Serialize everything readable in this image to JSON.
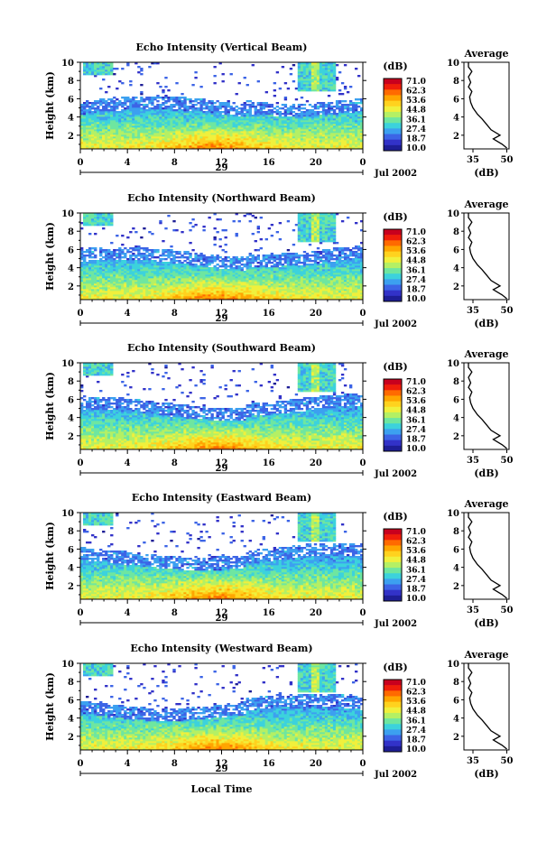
{
  "figure": {
    "xlabel": "Local Time",
    "date_suffix": "Jul 2002",
    "colorbar_unit": "(dB)",
    "colorbar_ticks": [
      "71.0",
      "62.3",
      "53.6",
      "44.8",
      "36.1",
      "27.4",
      "18.7",
      "10.0"
    ],
    "colorbar_colors": [
      "#c8001e",
      "#f01e0a",
      "#ff6a00",
      "#ffa500",
      "#ffd21e",
      "#f0f03c",
      "#b4f064",
      "#6ee6a0",
      "#3cd2dc",
      "#3ca0f0",
      "#3c64e6",
      "#3232c8",
      "#1e1e96"
    ],
    "avg_title": "Average",
    "avg_xlabel": "(dB)"
  },
  "chart_data": [
    {
      "type": "heatmap",
      "title": "Echo Intensity (Vertical Beam)",
      "ylabel": "Height (km)",
      "day_label": "29",
      "x_ticks": [
        "0",
        "4",
        "8",
        "12",
        "16",
        "20",
        "0"
      ],
      "xlim": [
        0,
        24
      ],
      "y_ticks": [
        "2",
        "4",
        "6",
        "8",
        "10"
      ],
      "ylim": [
        0.5,
        10
      ],
      "color_range_db": [
        10.0,
        71.0
      ],
      "average_profile": {
        "x_ticks": [
          "35",
          "50"
        ],
        "xlim": [
          31,
          51
        ],
        "y_ticks": [
          "2",
          "4",
          "6",
          "8",
          "10"
        ],
        "ylim": [
          0.5,
          10
        ],
        "points": [
          [
            50,
            0.6
          ],
          [
            48,
            1.0
          ],
          [
            44,
            1.6
          ],
          [
            47,
            2.0
          ],
          [
            43,
            2.6
          ],
          [
            41,
            3.2
          ],
          [
            39,
            3.8
          ],
          [
            37,
            4.3
          ],
          [
            35,
            5.0
          ],
          [
            34,
            5.6
          ],
          [
            33.5,
            6.2
          ],
          [
            34.5,
            6.8
          ],
          [
            33,
            7.3
          ],
          [
            34,
            7.8
          ],
          [
            33,
            8.4
          ],
          [
            34.5,
            9.0
          ],
          [
            33,
            9.5
          ],
          [
            33,
            10.0
          ]
        ]
      }
    },
    {
      "type": "heatmap",
      "title": "Echo Intensity (Northward Beam)",
      "ylabel": "Height (km)",
      "day_label": "29",
      "x_ticks": [
        "0",
        "4",
        "8",
        "12",
        "16",
        "20",
        "0"
      ],
      "xlim": [
        0,
        24
      ],
      "y_ticks": [
        "2",
        "4",
        "6",
        "8",
        "10"
      ],
      "ylim": [
        0.5,
        10
      ],
      "color_range_db": [
        10.0,
        71.0
      ],
      "average_profile": {
        "x_ticks": [
          "35",
          "50"
        ],
        "xlim": [
          31,
          51
        ],
        "y_ticks": [
          "2",
          "4",
          "6",
          "8",
          "10"
        ],
        "ylim": [
          0.5,
          10
        ],
        "points": [
          [
            50,
            0.6
          ],
          [
            48,
            1.0
          ],
          [
            44,
            1.6
          ],
          [
            47,
            2.0
          ],
          [
            43,
            2.6
          ],
          [
            41,
            3.2
          ],
          [
            39,
            3.8
          ],
          [
            37,
            4.3
          ],
          [
            35,
            5.0
          ],
          [
            34,
            5.6
          ],
          [
            33.5,
            6.2
          ],
          [
            34.5,
            6.8
          ],
          [
            33,
            7.3
          ],
          [
            34,
            7.8
          ],
          [
            33,
            8.4
          ],
          [
            34.5,
            9.0
          ],
          [
            33,
            9.5
          ],
          [
            33,
            10.0
          ]
        ]
      }
    },
    {
      "type": "heatmap",
      "title": "Echo Intensity (Southward Beam)",
      "ylabel": "Height (km)",
      "day_label": "29",
      "x_ticks": [
        "0",
        "4",
        "8",
        "12",
        "16",
        "20",
        "0"
      ],
      "xlim": [
        0,
        24
      ],
      "y_ticks": [
        "2",
        "4",
        "6",
        "8",
        "10"
      ],
      "ylim": [
        0.5,
        10
      ],
      "color_range_db": [
        10.0,
        71.0
      ],
      "average_profile": {
        "x_ticks": [
          "35",
          "50"
        ],
        "xlim": [
          31,
          51
        ],
        "y_ticks": [
          "2",
          "4",
          "6",
          "8",
          "10"
        ],
        "ylim": [
          0.5,
          10
        ],
        "points": [
          [
            50,
            0.6
          ],
          [
            48,
            1.0
          ],
          [
            44,
            1.6
          ],
          [
            47,
            2.0
          ],
          [
            43,
            2.6
          ],
          [
            41,
            3.2
          ],
          [
            39,
            3.8
          ],
          [
            37,
            4.3
          ],
          [
            35,
            5.0
          ],
          [
            34,
            5.6
          ],
          [
            33.5,
            6.2
          ],
          [
            34.5,
            6.8
          ],
          [
            33,
            7.3
          ],
          [
            34,
            7.8
          ],
          [
            33,
            8.4
          ],
          [
            34.5,
            9.0
          ],
          [
            33,
            9.5
          ],
          [
            33,
            10.0
          ]
        ]
      }
    },
    {
      "type": "heatmap",
      "title": "Echo Intensity (Eastward Beam)",
      "ylabel": "Height (km)",
      "day_label": "29",
      "x_ticks": [
        "0",
        "4",
        "8",
        "12",
        "16",
        "20",
        "0"
      ],
      "xlim": [
        0,
        24
      ],
      "y_ticks": [
        "2",
        "4",
        "6",
        "8",
        "10"
      ],
      "ylim": [
        0.5,
        10
      ],
      "color_range_db": [
        10.0,
        71.0
      ],
      "average_profile": {
        "x_ticks": [
          "35",
          "50"
        ],
        "xlim": [
          31,
          51
        ],
        "y_ticks": [
          "2",
          "4",
          "6",
          "8",
          "10"
        ],
        "ylim": [
          0.5,
          10
        ],
        "points": [
          [
            50,
            0.6
          ],
          [
            48,
            1.0
          ],
          [
            44,
            1.6
          ],
          [
            47,
            2.0
          ],
          [
            43,
            2.6
          ],
          [
            41,
            3.2
          ],
          [
            39,
            3.8
          ],
          [
            37,
            4.3
          ],
          [
            35,
            5.0
          ],
          [
            34,
            5.6
          ],
          [
            33.5,
            6.2
          ],
          [
            34.5,
            6.8
          ],
          [
            33,
            7.3
          ],
          [
            34,
            7.8
          ],
          [
            33,
            8.4
          ],
          [
            34.5,
            9.0
          ],
          [
            33,
            9.5
          ],
          [
            33,
            10.0
          ]
        ]
      }
    },
    {
      "type": "heatmap",
      "title": "Echo Intensity (Westward Beam)",
      "ylabel": "Height (km)",
      "day_label": "29",
      "x_ticks": [
        "0",
        "4",
        "8",
        "12",
        "16",
        "20",
        "0"
      ],
      "xlim": [
        0,
        24
      ],
      "y_ticks": [
        "2",
        "4",
        "6",
        "8",
        "10"
      ],
      "ylim": [
        0.5,
        10
      ],
      "color_range_db": [
        10.0,
        71.0
      ],
      "average_profile": {
        "x_ticks": [
          "35",
          "50"
        ],
        "xlim": [
          31,
          51
        ],
        "y_ticks": [
          "2",
          "4",
          "6",
          "8",
          "10"
        ],
        "ylim": [
          0.5,
          10
        ],
        "points": [
          [
            50,
            0.6
          ],
          [
            48,
            1.0
          ],
          [
            44,
            1.6
          ],
          [
            47,
            2.0
          ],
          [
            43,
            2.6
          ],
          [
            41,
            3.2
          ],
          [
            39,
            3.8
          ],
          [
            37,
            4.3
          ],
          [
            35,
            5.0
          ],
          [
            34,
            5.6
          ],
          [
            33.5,
            6.2
          ],
          [
            34.5,
            6.8
          ],
          [
            33,
            7.3
          ],
          [
            34,
            7.8
          ],
          [
            33,
            8.4
          ],
          [
            34.5,
            9.0
          ],
          [
            33,
            9.5
          ],
          [
            33,
            10.0
          ]
        ]
      }
    }
  ]
}
